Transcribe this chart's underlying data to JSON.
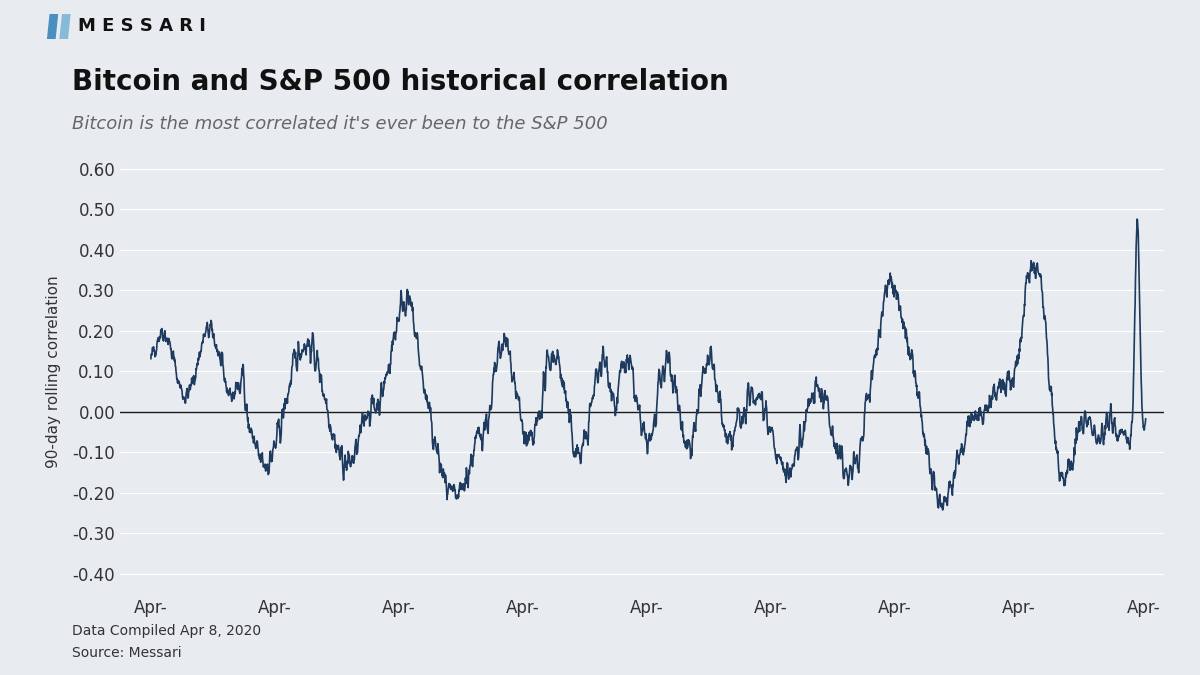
{
  "title": "Bitcoin and S&P 500 historical correlation",
  "subtitle": "Bitcoin is the most correlated it's ever been to the S&P 500",
  "ylabel": "90-day rolling correlation",
  "footer_line1": "Data Compiled Apr 8, 2020",
  "footer_line2": "Source: Messari",
  "logo_text": "M E S S A R I",
  "ylim": [
    -0.45,
    0.65
  ],
  "yticks": [
    -0.4,
    -0.3,
    -0.2,
    -0.1,
    0.0,
    0.1,
    0.2,
    0.3,
    0.4,
    0.5,
    0.6
  ],
  "line_color": "#1e3a5f",
  "line_width": 1.2,
  "bg_color": "#e8ecf0",
  "plot_bg_color": "#e8ecf0",
  "grid_color": "#ffffff",
  "zero_line_color": "#1a1a1a",
  "title_fontsize": 20,
  "subtitle_fontsize": 13,
  "tick_fontsize": 12,
  "ylabel_fontsize": 11
}
